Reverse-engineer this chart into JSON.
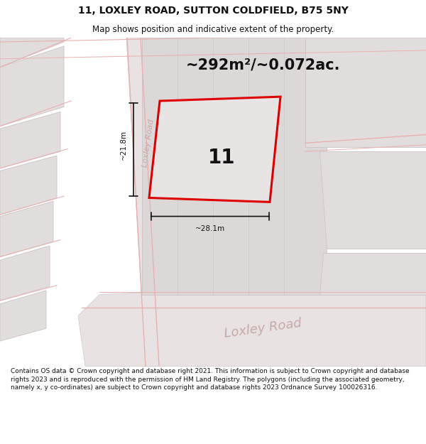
{
  "title_line1": "11, LOXLEY ROAD, SUTTON COLDFIELD, B75 5NY",
  "title_line2": "Map shows position and indicative extent of the property.",
  "area_text": "~292m²/~0.072ac.",
  "plot_number": "11",
  "dim_width": "~28.1m",
  "dim_height": "~21.8m",
  "road_label_bottom": "Loxley Road",
  "road_label_side": "Loxley Road",
  "footer_text": "Contains OS data © Crown copyright and database right 2021. This information is subject to Crown copyright and database rights 2023 and is reproduced with the permission of HM Land Registry. The polygons (including the associated geometry, namely x, y co-ordinates) are subject to Crown copyright and database rights 2023 Ordnance Survey 100026316.",
  "bg_color": "#ffffff",
  "map_bg": "#f0ecec",
  "block_color": "#e2dddd",
  "block_edge": "#d0c8c8",
  "road_line_color": "#e8b0b0",
  "red_line_color": "#dd0000",
  "dim_line_color": "#111111",
  "text_color": "#111111",
  "road_text_color": "#c8a8a8",
  "area_text_color": "#111111"
}
